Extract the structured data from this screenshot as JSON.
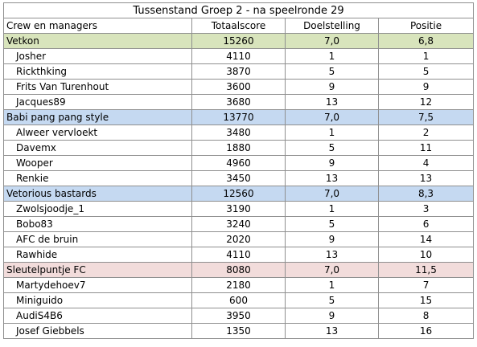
{
  "title": "Tussenstand Groep 2  - na speelronde 29",
  "headers": {
    "name": "Crew en managers",
    "score": "Totaalscore",
    "goal": "Doelstelling",
    "position": "Positie"
  },
  "teams": [
    {
      "name": "Vetkon",
      "score": "15260",
      "goal": "7,0",
      "position": "6,8",
      "color": "#d8e4bc",
      "members": [
        {
          "name": "Josher",
          "score": "4110",
          "goal": "1",
          "position": "1"
        },
        {
          "name": "Rickthking",
          "score": "3870",
          "goal": "5",
          "position": "5"
        },
        {
          "name": "Frits Van Turenhout",
          "score": "3600",
          "goal": "9",
          "position": "9"
        },
        {
          "name": "Jacques89",
          "score": "3680",
          "goal": "13",
          "position": "12"
        }
      ]
    },
    {
      "name": "Babi pang pang style",
      "score": "13770",
      "goal": "7,0",
      "position": "7,5",
      "color": "#c5d9f1",
      "members": [
        {
          "name": "Alweer vervloekt",
          "score": "3480",
          "goal": "1",
          "position": "2"
        },
        {
          "name": "Davemx",
          "score": "1880",
          "goal": "5",
          "position": "11"
        },
        {
          "name": "Wooper",
          "score": "4960",
          "goal": "9",
          "position": "4"
        },
        {
          "name": "Renkie",
          "score": "3450",
          "goal": "13",
          "position": "13"
        }
      ]
    },
    {
      "name": "Vetorious bastards",
      "score": "12560",
      "goal": "7,0",
      "position": "8,3",
      "color": "#c5d9f1",
      "members": [
        {
          "name": "Zwolsjoodje_1",
          "score": "3190",
          "goal": "1",
          "position": "3"
        },
        {
          "name": "Bobo83",
          "score": "3240",
          "goal": "5",
          "position": "6"
        },
        {
          "name": "AFC de bruin",
          "score": "2020",
          "goal": "9",
          "position": "14"
        },
        {
          "name": "Rawhide",
          "score": "4110",
          "goal": "13",
          "position": "10"
        }
      ]
    },
    {
      "name": "Sleutelpuntje FC",
      "score": "8080",
      "goal": "7,0",
      "position": "11,5",
      "color": "#f2dcdb",
      "members": [
        {
          "name": "Martydehoev7",
          "score": "2180",
          "goal": "1",
          "position": "7"
        },
        {
          "name": "Miniguido",
          "score": "600",
          "goal": "5",
          "position": "15"
        },
        {
          "name": "AudiS4B6",
          "score": "3950",
          "goal": "9",
          "position": "8"
        },
        {
          "name": "Josef Giebbels",
          "score": "1350",
          "goal": "13",
          "position": "16"
        }
      ]
    }
  ]
}
